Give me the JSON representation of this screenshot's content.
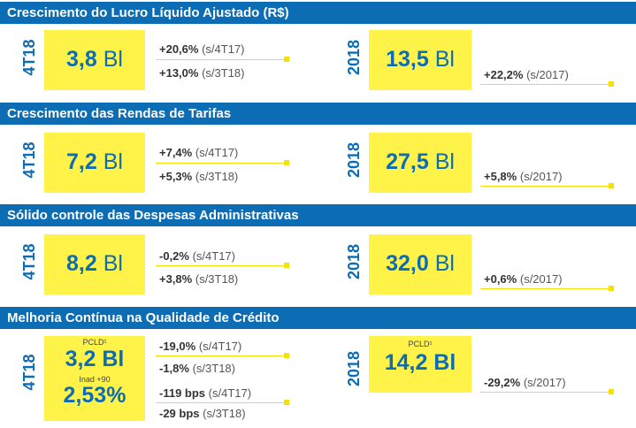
{
  "sections": [
    {
      "title": "Crescimento do Lucro Líquido Ajustado (R$)",
      "quarter_label": "4T18",
      "quarter_value_num": "3,8",
      "quarter_value_unit": "Bl",
      "quarter_cmp": [
        {
          "pct": "+20,6%",
          "ref": "(s/4T17)"
        },
        {
          "pct": "+13,0%",
          "ref": "(s/3T18)"
        }
      ],
      "year_label": "2018",
      "year_value_num": "13,5",
      "year_value_unit": "Bl",
      "year_cmp": {
        "pct": "+22,2%",
        "ref": "(s/2017)"
      }
    },
    {
      "title": "Crescimento das Rendas de Tarifas",
      "quarter_label": "4T18",
      "quarter_value_num": "7,2",
      "quarter_value_unit": "Bl",
      "quarter_cmp": [
        {
          "pct": "+7,4%",
          "ref": "(s/4T17)"
        },
        {
          "pct": "+5,3%",
          "ref": "(s/3T18)"
        }
      ],
      "year_label": "2018",
      "year_value_num": "27,5",
      "year_value_unit": "Bl",
      "year_cmp": {
        "pct": "+5,8%",
        "ref": "(s/2017)"
      }
    },
    {
      "title": "Sólido controle das Despesas Administrativas",
      "quarter_label": "4T18",
      "quarter_value_num": "8,2",
      "quarter_value_unit": "Bl",
      "quarter_cmp": [
        {
          "pct": "-0,2%",
          "ref": "(s/4T17)"
        },
        {
          "pct": "+3,8%",
          "ref": "(s/3T18)"
        }
      ],
      "year_label": "2018",
      "year_value_num": "32,0",
      "year_value_unit": "Bl",
      "year_cmp": {
        "pct": "+0,6%",
        "ref": "(s/2017)"
      }
    },
    {
      "title": "Melhoria Contínua na Qualidade de Crédito",
      "quarter_label": "4T18",
      "quarter_pcld_label": "PCLD¹",
      "quarter_pcld_value": "3,2 Bl",
      "quarter_inad_label": "Inad +90",
      "quarter_inad_value": "2,53%",
      "quarter_cmp": [
        {
          "pct": "-19,0%",
          "ref": "(s/4T17)"
        },
        {
          "pct": "-1,8%",
          "ref": "(s/3T18)"
        },
        {
          "pct": "-119 bps",
          "ref": "(s/4T17)"
        },
        {
          "pct": "-29 bps",
          "ref": "(s/3T18)"
        }
      ],
      "year_label": "2018",
      "year_pcld_label": "PCLD¹",
      "year_pcld_value": "14,2 Bl",
      "year_cmp": {
        "pct": "-29,2%",
        "ref": "(s/2017)"
      }
    }
  ],
  "colors": {
    "band": "#0c6cb4",
    "highlight": "#fff34a",
    "accent_line": "#f5e200",
    "value_text": "#0c6cb4"
  }
}
